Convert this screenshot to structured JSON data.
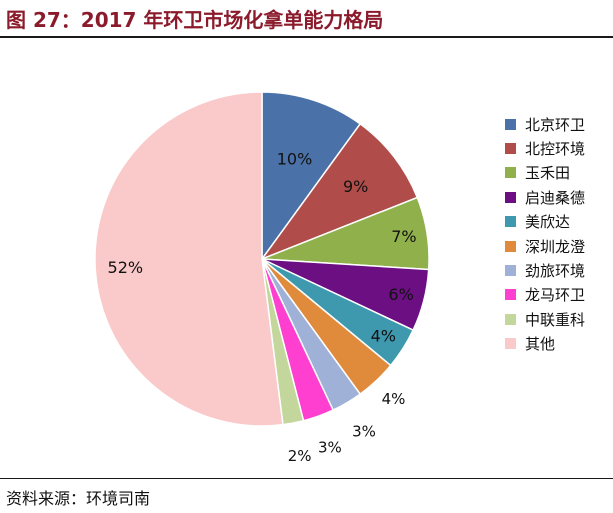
{
  "figure": {
    "title": "图 27：2017 年环卫市场化拿单能力格局",
    "source": "资料来源：环境司南"
  },
  "chart_data": {
    "type": "pie",
    "categories": [
      "北京环卫",
      "北控环境",
      "玉禾田",
      "启迪桑德",
      "美欣达",
      "深圳龙澄",
      "劲旅环境",
      "龙马环卫",
      "中联重科",
      "其他"
    ],
    "values": [
      10,
      9,
      7,
      6,
      4,
      4,
      3,
      3,
      2,
      52
    ],
    "labels": [
      "10%",
      "9%",
      "7%",
      "6%",
      "4%",
      "4%",
      "3%",
      "3%",
      "2%",
      "52%"
    ],
    "colors": [
      "#4A72A8",
      "#B04D4A",
      "#8FB04A",
      "#6C0F82",
      "#3E98AE",
      "#E08A3C",
      "#9FB1D6",
      "#FF3FD0",
      "#C3D69B",
      "#FAC9C9"
    ],
    "legend_position": "right"
  }
}
